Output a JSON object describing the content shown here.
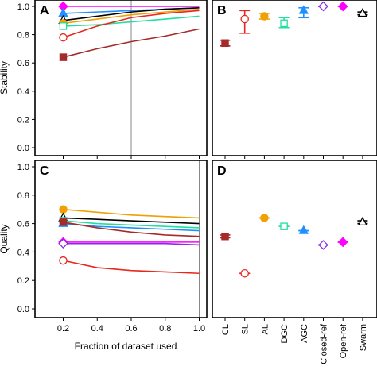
{
  "colors": {
    "CL": "#a52a2a",
    "SL": "#e8281e",
    "AL": "#f0a000",
    "DGC": "#20e0a0",
    "AGC": "#1e90ff",
    "Closed-ref": "#8a2be2",
    "Open-ref": "#ff00ff",
    "Swarm": "#000000"
  },
  "chart_data": [
    {
      "panel": "A",
      "type": "line",
      "ylabel": "Stability",
      "xlabel": "",
      "xlim": [
        0.1,
        1.0
      ],
      "ylim": [
        0,
        1.0
      ],
      "y_ticks": [
        "0.0",
        "0.2",
        "0.4",
        "0.6",
        "0.8",
        "1.0"
      ],
      "x_ticks": [],
      "vline_x": 0.6,
      "x": [
        0.2,
        0.4,
        0.6,
        0.8,
        1.0
      ],
      "series": [
        {
          "id": "Open-ref",
          "marker": "diamond-filled",
          "values": [
            1.0,
            1.0,
            1.0,
            1.0,
            1.0
          ]
        },
        {
          "id": "AGC",
          "marker": "triangle-filled",
          "values": [
            0.95,
            0.96,
            0.97,
            0.98,
            0.99
          ]
        },
        {
          "id": "Swarm",
          "marker": "triangle-open",
          "values": [
            0.9,
            0.93,
            0.96,
            0.98,
            0.99
          ]
        },
        {
          "id": "AL",
          "marker": "circle-filled",
          "values": [
            0.88,
            0.91,
            0.94,
            0.96,
            0.98
          ]
        },
        {
          "id": "DGC",
          "marker": "square-open",
          "values": [
            0.86,
            0.87,
            0.89,
            0.91,
            0.93
          ]
        },
        {
          "id": "SL",
          "marker": "circle-open",
          "values": [
            0.78,
            0.86,
            0.92,
            0.95,
            0.97
          ]
        },
        {
          "id": "CL",
          "marker": "square-filled",
          "values": [
            0.64,
            0.7,
            0.75,
            0.79,
            0.84
          ]
        }
      ]
    },
    {
      "panel": "B",
      "type": "scatter",
      "ylim": [
        0,
        1.0
      ],
      "categories": [],
      "points": [
        {
          "id": "CL",
          "marker": "square-filled",
          "y": 0.74,
          "lo": 0.72,
          "hi": 0.76
        },
        {
          "id": "SL",
          "marker": "circle-open",
          "y": 0.91,
          "lo": 0.81,
          "hi": 0.97
        },
        {
          "id": "AL",
          "marker": "circle-filled",
          "y": 0.93,
          "lo": 0.91,
          "hi": 0.95
        },
        {
          "id": "DGC",
          "marker": "square-open",
          "y": 0.88,
          "lo": 0.85,
          "hi": 0.92
        },
        {
          "id": "AGC",
          "marker": "triangle-filled",
          "y": 0.97,
          "lo": 0.92,
          "hi": 0.99
        },
        {
          "id": "Closed-ref",
          "marker": "diamond-open",
          "y": 1.0,
          "lo": 1.0,
          "hi": 1.0
        },
        {
          "id": "Open-ref",
          "marker": "diamond-filled",
          "y": 1.0,
          "lo": 1.0,
          "hi": 1.0
        },
        {
          "id": "Swarm",
          "marker": "triangle-open",
          "y": 0.95,
          "lo": 0.94,
          "hi": 0.96
        }
      ]
    },
    {
      "panel": "C",
      "type": "line",
      "ylabel": "Quality",
      "xlabel": "Fraction of dataset used",
      "xlim": [
        0.1,
        1.0
      ],
      "ylim": [
        0,
        1.0
      ],
      "y_ticks": [
        "0.0",
        "0.2",
        "0.4",
        "0.6",
        "0.8",
        "1.0"
      ],
      "x_ticks": [
        "0.2",
        "0.4",
        "0.6",
        "0.8",
        "1.0"
      ],
      "vline_x": 1.0,
      "x": [
        0.2,
        0.4,
        0.6,
        0.8,
        1.0
      ],
      "series": [
        {
          "id": "AL",
          "marker": "circle-filled",
          "values": [
            0.7,
            0.68,
            0.66,
            0.65,
            0.64
          ]
        },
        {
          "id": "Swarm",
          "marker": "triangle-open",
          "values": [
            0.64,
            0.63,
            0.62,
            0.61,
            0.6
          ]
        },
        {
          "id": "DGC",
          "marker": "square-open",
          "values": [
            0.62,
            0.6,
            0.59,
            0.58,
            0.57
          ]
        },
        {
          "id": "AGC",
          "marker": "triangle-filled",
          "values": [
            0.6,
            0.58,
            0.57,
            0.56,
            0.55
          ]
        },
        {
          "id": "CL",
          "marker": "square-filled",
          "values": [
            0.61,
            0.57,
            0.54,
            0.52,
            0.51
          ]
        },
        {
          "id": "Open-ref",
          "marker": "diamond-filled",
          "values": [
            0.47,
            0.47,
            0.47,
            0.47,
            0.47
          ]
        },
        {
          "id": "Closed-ref",
          "marker": "diamond-open",
          "values": [
            0.46,
            0.46,
            0.46,
            0.46,
            0.45
          ]
        },
        {
          "id": "SL",
          "marker": "circle-open",
          "values": [
            0.34,
            0.29,
            0.27,
            0.26,
            0.25
          ]
        }
      ]
    },
    {
      "panel": "D",
      "type": "scatter",
      "ylim": [
        0,
        1.0
      ],
      "categories": [
        "CL",
        "SL",
        "AL",
        "DGC",
        "AGC",
        "Closed-ref",
        "Open-ref",
        "Swarm"
      ],
      "points": [
        {
          "id": "CL",
          "marker": "square-filled",
          "y": 0.51,
          "lo": 0.5,
          "hi": 0.52
        },
        {
          "id": "SL",
          "marker": "circle-open",
          "y": 0.25,
          "lo": 0.25,
          "hi": 0.25
        },
        {
          "id": "AL",
          "marker": "circle-filled",
          "y": 0.64,
          "lo": 0.64,
          "hi": 0.64
        },
        {
          "id": "DGC",
          "marker": "square-open",
          "y": 0.58,
          "lo": 0.58,
          "hi": 0.58
        },
        {
          "id": "AGC",
          "marker": "triangle-filled",
          "y": 0.55,
          "lo": 0.55,
          "hi": 0.55
        },
        {
          "id": "Closed-ref",
          "marker": "diamond-open",
          "y": 0.45,
          "lo": 0.45,
          "hi": 0.45
        },
        {
          "id": "Open-ref",
          "marker": "diamond-filled",
          "y": 0.47,
          "lo": 0.47,
          "hi": 0.47
        },
        {
          "id": "Swarm",
          "marker": "triangle-open",
          "y": 0.61,
          "lo": 0.6,
          "hi": 0.62
        }
      ]
    }
  ]
}
